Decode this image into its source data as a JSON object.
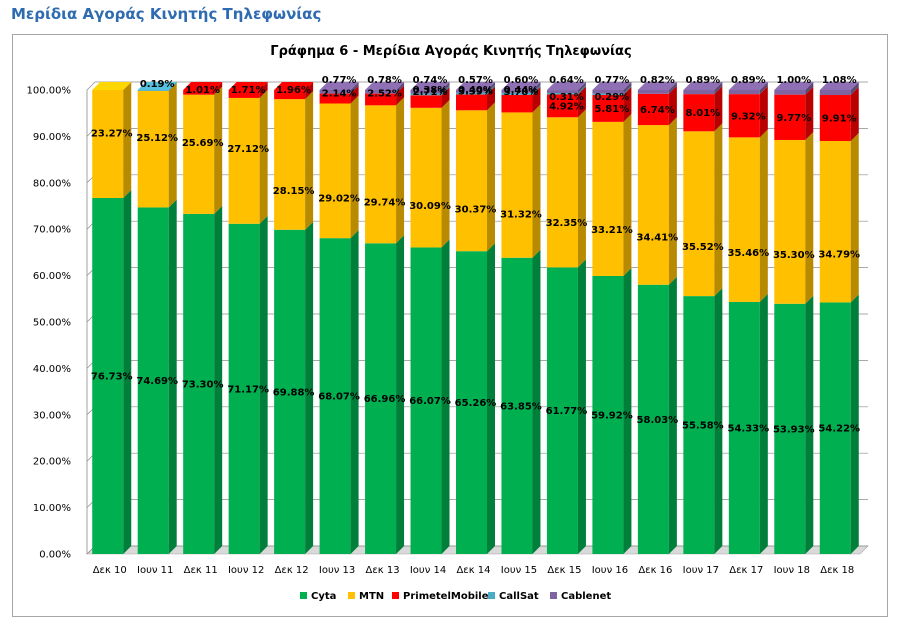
{
  "page": {
    "heading": "Μερίδια Αγοράς Κινητής Τηλεφωνίας"
  },
  "chart_data": {
    "type": "bar",
    "stacked": true,
    "percent_stacked": true,
    "three_d": true,
    "title": "Γράφημα 6 - Μερίδια Αγοράς Κινητής Τηλεφωνίας",
    "xlabel": "",
    "ylabel": "",
    "ylim": [
      0,
      100
    ],
    "y_ticks": [
      "0.00%",
      "10.00%",
      "20.00%",
      "30.00%",
      "40.00%",
      "50.00%",
      "60.00%",
      "70.00%",
      "80.00%",
      "90.00%",
      "100.00%"
    ],
    "grid": true,
    "legend_position": "bottom",
    "categories": [
      "Δεκ 10",
      "Ιουν 11",
      "Δεκ 11",
      "Ιουν 12",
      "Δεκ 12",
      "Ιουν 13",
      "Δεκ 13",
      "Ιουν 14",
      "Δεκ 14",
      "Ιουν 15",
      "Δεκ 15",
      "Ιουν 16",
      "Δεκ 16",
      "Ιουν 17",
      "Δεκ 17",
      "Ιουν 18",
      "Δεκ 18"
    ],
    "series": [
      {
        "name": "Cyta",
        "color": "#00b050",
        "values": [
          76.73,
          74.69,
          73.3,
          71.17,
          69.88,
          68.07,
          66.96,
          66.07,
          65.26,
          63.85,
          61.77,
          59.92,
          58.03,
          55.58,
          54.33,
          53.93,
          54.22
        ],
        "labels": [
          "76.73%",
          "74.69%",
          "73.30%",
          "71.17%",
          "69.88%",
          "68.07%",
          "66.96%",
          "66.07%",
          "65.26%",
          "63.85%",
          "61.77%",
          "59.92%",
          "58.03%",
          "55.58%",
          "54.33%",
          "53.93%",
          "54.22%"
        ]
      },
      {
        "name": "MTN",
        "color": "#ffc000",
        "values": [
          23.27,
          25.12,
          25.69,
          27.12,
          28.15,
          29.02,
          29.74,
          30.09,
          30.37,
          31.32,
          32.35,
          33.21,
          34.41,
          35.52,
          35.46,
          35.3,
          34.79
        ],
        "labels": [
          "23.27%",
          "25.12%",
          "25.69%",
          "27.12%",
          "28.15%",
          "29.02%",
          "29.74%",
          "30.09%",
          "30.37%",
          "31.32%",
          "32.35%",
          "33.21%",
          "34.41%",
          "35.52%",
          "35.46%",
          "35.30%",
          "34.79%"
        ]
      },
      {
        "name": "PrimetelMobile",
        "color": "#ff0000",
        "values": [
          0,
          0,
          1.01,
          1.71,
          1.96,
          2.14,
          2.52,
          2.71,
          3.39,
          3.78,
          4.92,
          5.81,
          6.74,
          8.01,
          9.32,
          9.77,
          9.91
        ],
        "labels": [
          "",
          "",
          "1.01%",
          "1.71%",
          "1.96%",
          "2.14%",
          "2.52%",
          "2.71%",
          "3.39%",
          "3.78%",
          "4.92%",
          "5.81%",
          "6.74%",
          "8.01%",
          "9.32%",
          "9.77%",
          "9.91%"
        ]
      },
      {
        "name": "CallSat",
        "color": "#4bacc6",
        "values": [
          0,
          0.19,
          0,
          0,
          0,
          0,
          0,
          0.38,
          0.4,
          0.44,
          0.31,
          0.29,
          0,
          0,
          0,
          0,
          0
        ],
        "labels": [
          "",
          "0.19%",
          "",
          "",
          "",
          "",
          "",
          "0.38%",
          "0.40%",
          "0.44%",
          "0.31%",
          "0.29%",
          "",
          "",
          "",
          "",
          ""
        ]
      },
      {
        "name": "Cablenet",
        "color": "#8064a2",
        "values": [
          0,
          0,
          0,
          0,
          0,
          0.77,
          0.78,
          0.74,
          0.57,
          0.6,
          0.64,
          0.77,
          0.82,
          0.89,
          0.89,
          1.0,
          1.08
        ],
        "labels": [
          "",
          "",
          "",
          "",
          "",
          "0.77%",
          "0.78%",
          "0.74%",
          "0.57%",
          "0.60%",
          "0.64%",
          "0.77%",
          "0.82%",
          "0.89%",
          "0.89%",
          "1.00%",
          "1.08%"
        ]
      }
    ]
  }
}
